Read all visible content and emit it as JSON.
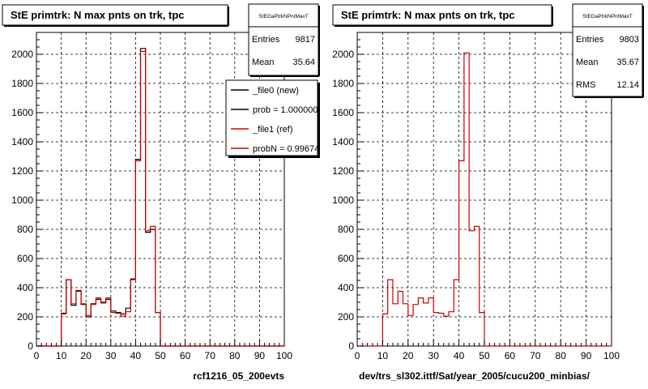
{
  "chart_data": [
    {
      "type": "histogram",
      "title": "StE primtrk: N max pnts on trk, tpc",
      "xlabel": "rcf1216_05_200evts",
      "ylabel": "",
      "xlim": [
        0,
        100
      ],
      "ylim": [
        0,
        2150
      ],
      "xticks": [
        0,
        10,
        20,
        30,
        40,
        50,
        60,
        70,
        80,
        90,
        100
      ],
      "yticks": [
        0,
        200,
        400,
        600,
        800,
        1000,
        1200,
        1400,
        1600,
        1800,
        2000
      ],
      "grid": true,
      "bin_width": 2,
      "bin_edges_start": 0,
      "stats": {
        "name": "StEGaPtrkNPntMaxT",
        "entries_label": "Entries",
        "entries": "9817",
        "mean_label": "Mean",
        "mean": "35.64"
      },
      "legend": [
        {
          "label": "_file0 (new)",
          "color": "#000000"
        },
        {
          "label": "prob = 1.000000",
          "color": "#000000"
        },
        {
          "label": "_file1 (ref)",
          "color": "#cc0000"
        },
        {
          "label": "probN = 0.996740",
          "color": "#cc0000"
        }
      ],
      "series": [
        {
          "name": "_file0 (new)",
          "color": "#000000",
          "values": [
            0,
            0,
            0,
            0,
            0,
            225,
            455,
            280,
            380,
            285,
            200,
            290,
            320,
            300,
            320,
            240,
            230,
            220,
            260,
            460,
            1280,
            2040,
            780,
            800,
            230,
            0,
            0,
            0,
            0,
            0,
            0,
            0,
            0,
            0,
            0,
            0,
            0,
            0,
            0,
            0,
            0,
            0,
            0,
            0,
            0,
            0,
            0,
            0,
            0,
            0
          ]
        },
        {
          "name": "_file1 (ref)",
          "color": "#cc0000",
          "values": [
            0,
            0,
            0,
            0,
            0,
            220,
            455,
            290,
            375,
            290,
            210,
            285,
            330,
            295,
            330,
            230,
            225,
            205,
            235,
            455,
            1270,
            2020,
            790,
            820,
            230,
            0,
            0,
            0,
            0,
            0,
            0,
            0,
            0,
            0,
            0,
            0,
            0,
            0,
            0,
            0,
            0,
            0,
            0,
            0,
            0,
            0,
            0,
            0,
            0,
            0
          ]
        }
      ]
    },
    {
      "type": "histogram",
      "title": "StE primtrk: N max pnts on trk, tpc",
      "xlabel": "dev/trs_sl302.ittf/Sat/year_2005/cucu200_minbias/",
      "ylabel": "",
      "xlim": [
        0,
        100
      ],
      "ylim": [
        0,
        2150
      ],
      "xticks": [
        0,
        10,
        20,
        30,
        40,
        50,
        60,
        70,
        80,
        90,
        100
      ],
      "yticks": [
        0,
        200,
        400,
        600,
        800,
        1000,
        1200,
        1400,
        1600,
        1800,
        2000
      ],
      "grid": true,
      "bin_width": 2,
      "bin_edges_start": 0,
      "stats": {
        "name": "StEGaPtrkNPntMaxT",
        "entries_label": "Entries",
        "entries": "9803",
        "mean_label": "Mean",
        "mean": "35.67",
        "rms_label": "RMS",
        "rms": "12.14"
      },
      "legend": [],
      "series": [
        {
          "name": "",
          "color": "#cc0000",
          "values": [
            0,
            0,
            0,
            0,
            0,
            220,
            455,
            290,
            375,
            290,
            210,
            285,
            330,
            295,
            330,
            230,
            225,
            205,
            235,
            455,
            1270,
            2010,
            790,
            820,
            230,
            0,
            0,
            0,
            0,
            0,
            0,
            0,
            0,
            0,
            0,
            0,
            0,
            0,
            0,
            0,
            0,
            0,
            0,
            0,
            0,
            0,
            0,
            0,
            0,
            0
          ]
        }
      ]
    }
  ]
}
